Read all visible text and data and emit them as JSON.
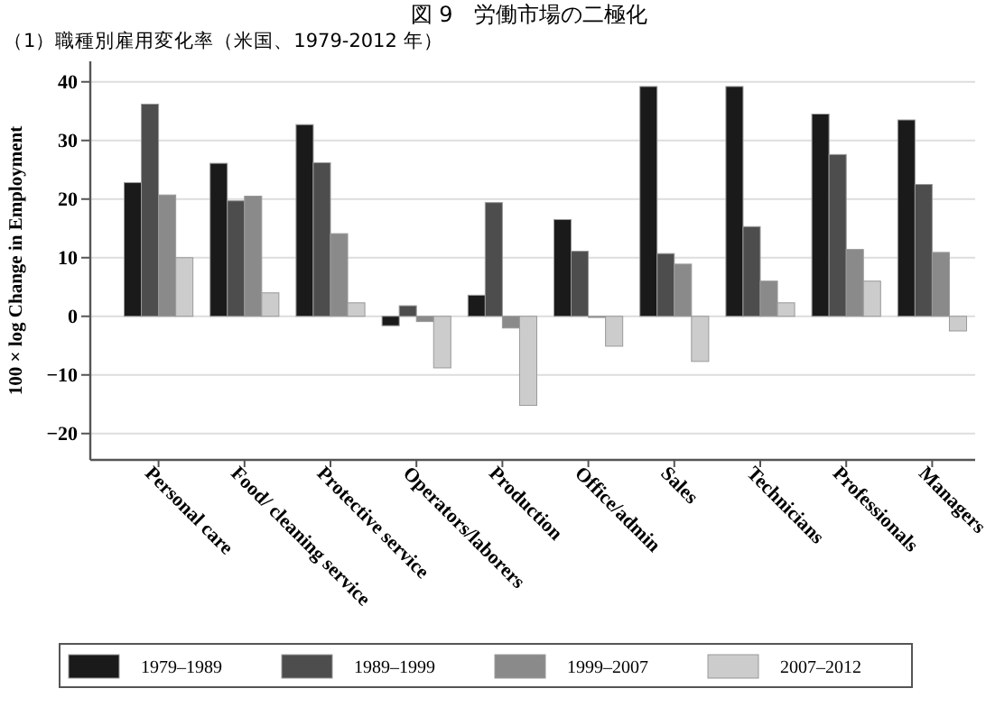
{
  "chart_data": {
    "type": "bar",
    "title": "図 9　労働市場の二極化",
    "subtitle": "（1）職種別雇用変化率（米国、1979-2012 年）",
    "ylabel": "100 × log Change in Employment",
    "categories": [
      "Personal care",
      "Food/ cleaning service",
      "Protective service",
      "Operators/laborers",
      "Production",
      "Office/admin",
      "Sales",
      "Technicians",
      "Professionals",
      "Managers"
    ],
    "series": [
      {
        "name": "1979–1989",
        "color": "#1a1a1a",
        "values": [
          22.8,
          26.1,
          32.7,
          -1.6,
          3.6,
          16.5,
          39.2,
          39.2,
          34.5,
          33.5
        ]
      },
      {
        "name": "1989–1999",
        "color": "#4d4d4d",
        "values": [
          36.2,
          19.7,
          26.2,
          1.8,
          19.4,
          11.1,
          10.7,
          15.3,
          27.6,
          22.5
        ]
      },
      {
        "name": "1999–2007",
        "color": "#8a8a8a",
        "values": [
          20.7,
          20.5,
          14.1,
          -0.9,
          -2.0,
          -0.2,
          8.9,
          6.0,
          11.4,
          10.9
        ]
      },
      {
        "name": "2007–2012",
        "color": "#cccccc",
        "values": [
          10.0,
          4.0,
          2.3,
          -8.8,
          -15.2,
          -5.1,
          -7.7,
          2.3,
          6.0,
          -2.5
        ]
      }
    ],
    "ylim": [
      -24.5,
      43.5
    ],
    "yticks": [
      -20,
      -10,
      0,
      10,
      20,
      30,
      40
    ],
    "grid": "y",
    "legend": "bottom"
  }
}
